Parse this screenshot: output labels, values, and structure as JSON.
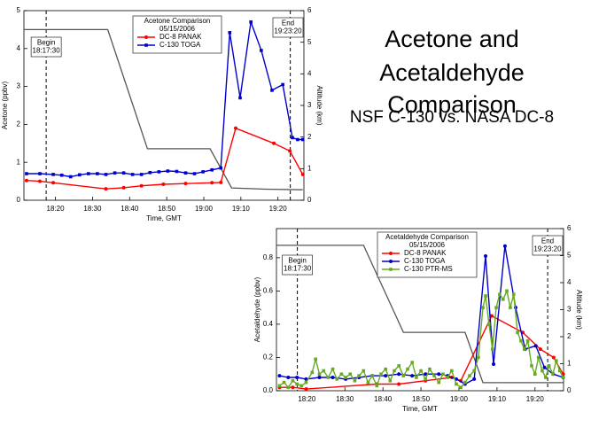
{
  "slide": {
    "title_lines": [
      "Acetone and",
      "Acetaldehyde",
      "Comparison"
    ],
    "subtitle": "NSF C-130 vs. NASA DC-8"
  },
  "chart_data": [
    {
      "type": "line",
      "title": "Acetone Comparison",
      "subtitle": "05/15/2006",
      "xlabel": "Time, GMT",
      "ylabel": "Acetone  (ppbv)",
      "y2label": "Altitude  (km)",
      "xlim": [
        1091.5,
        1167
      ],
      "xticks": [
        {
          "value": 1100,
          "label": "18:20"
        },
        {
          "value": 1110,
          "label": "18:30"
        },
        {
          "value": 1120,
          "label": "18:40"
        },
        {
          "value": 1130,
          "label": "18:50"
        },
        {
          "value": 1140,
          "label": "19:00"
        },
        {
          "value": 1150,
          "label": "19:10"
        },
        {
          "value": 1160,
          "label": "19:20"
        }
      ],
      "ylim": [
        0,
        5
      ],
      "yticks": [
        0,
        1,
        2,
        3,
        4,
        5
      ],
      "y2lim": [
        0,
        6
      ],
      "y2ticks": [
        0,
        1,
        2,
        3,
        4,
        5,
        6
      ],
      "annotations": [
        {
          "x": 1097.5,
          "lines": [
            "Begin",
            "18:17:30"
          ]
        },
        {
          "x": 1163.33,
          "lines": [
            "End",
            "19:23:20"
          ]
        }
      ],
      "series": [
        {
          "color": "#555555",
          "axis": "y2",
          "marker": "none",
          "x": [
            1091.5,
            1114.1,
            1124.8,
            1141.7,
            1147.5,
            1156.5,
            1166.7
          ],
          "values": [
            5.4,
            5.4,
            1.63,
            1.63,
            0.39,
            0.35,
            0.33
          ]
        },
        {
          "name": "DC-8 PANAK",
          "color": "#ff0000",
          "marker": "circle",
          "x": [
            1092.2,
            1095.8,
            1099.4,
            1113.6,
            1118.4,
            1123.2,
            1129.1,
            1135.1,
            1142.2,
            1144.6,
            1148.6,
            1158.9,
            1163.2,
            1166.7
          ],
          "values": [
            0.52,
            0.5,
            0.46,
            0.3,
            0.33,
            0.38,
            0.42,
            0.44,
            0.46,
            0.47,
            1.9,
            1.5,
            1.3,
            0.68
          ]
        },
        {
          "name": "C-130 TOGA",
          "color": "#0000cc",
          "marker": "square",
          "x": [
            1092.2,
            1095.8,
            1099.4,
            1101.7,
            1104.1,
            1106.5,
            1108.9,
            1111.3,
            1113.6,
            1116.0,
            1118.4,
            1120.8,
            1123.2,
            1125.5,
            1127.9,
            1130.3,
            1132.7,
            1135.1,
            1137.5,
            1139.8,
            1142.2,
            1144.6,
            1147.0,
            1149.8,
            1152.7,
            1155.5,
            1158.4,
            1161.3,
            1163.9,
            1165.3,
            1166.7
          ],
          "values": [
            0.7,
            0.7,
            0.68,
            0.66,
            0.62,
            0.67,
            0.7,
            0.7,
            0.68,
            0.72,
            0.72,
            0.68,
            0.68,
            0.73,
            0.75,
            0.77,
            0.76,
            0.72,
            0.7,
            0.75,
            0.8,
            0.85,
            4.42,
            2.7,
            4.7,
            3.95,
            2.9,
            3.05,
            1.65,
            1.6,
            1.6
          ]
        }
      ]
    },
    {
      "type": "line",
      "title": "Acetaldehyde Comparison",
      "subtitle": "05/15/2006",
      "xlabel": "Time, GMT",
      "ylabel": "Acetaldehyde  (ppbv)",
      "y2label": "Altitude  (km)",
      "xlim": [
        1092,
        1167.5
      ],
      "xticks": [
        {
          "value": 1100,
          "label": "18:20"
        },
        {
          "value": 1110,
          "label": "18:30"
        },
        {
          "value": 1120,
          "label": "18:40"
        },
        {
          "value": 1130,
          "label": "18:50"
        },
        {
          "value": 1140,
          "label": "19:00"
        },
        {
          "value": 1150,
          "label": "19:10"
        },
        {
          "value": 1160,
          "label": "19:20"
        }
      ],
      "ylim": [
        0,
        0.975
      ],
      "yticks": [
        {
          "value": 0,
          "label": "0.0"
        },
        0.2,
        0.4,
        0.6,
        0.8
      ],
      "y2lim": [
        0,
        6
      ],
      "y2ticks": [
        0,
        1,
        2,
        3,
        4,
        5,
        6
      ],
      "annotations": [
        {
          "x": 1097.5,
          "lines": [
            "Begin",
            "18:17:30"
          ]
        },
        {
          "x": 1163.33,
          "lines": [
            "End",
            "19:23:20"
          ]
        }
      ],
      "series": [
        {
          "color": "#555555",
          "axis": "y2",
          "marker": "none",
          "x": [
            1092.1,
            1114.9,
            1125.4,
            1141.6,
            1146.3,
            1167.4
          ],
          "values": [
            5.38,
            5.38,
            2.16,
            2.16,
            0.3,
            0.3
          ]
        },
        {
          "name": "DC-8 PANAK",
          "color": "#ff0000",
          "marker": "circle",
          "x": [
            1092.8,
            1096.3,
            1099.8,
            1118.4,
            1124.2,
            1131.2,
            1138.1,
            1140.5,
            1148.6,
            1156.8,
            1161.4,
            1164.9,
            1167.4
          ],
          "values": [
            0.02,
            0.02,
            0.01,
            0.04,
            0.04,
            0.06,
            0.08,
            0.06,
            0.45,
            0.35,
            0.25,
            0.2,
            0.1
          ]
        },
        {
          "name": "C-130 TOGA",
          "color": "#0000cc",
          "marker": "circle",
          "x": [
            1092.8,
            1095.1,
            1097.4,
            1099.8,
            1103.3,
            1106.8,
            1110.2,
            1113.7,
            1117.2,
            1120.7,
            1124.2,
            1127.7,
            1131.2,
            1134.7,
            1137.0,
            1139.3,
            1141.6,
            1144.0,
            1147.0,
            1149.1,
            1152.1,
            1154.9,
            1157.4,
            1160.2,
            1162.5,
            1164.8,
            1167.4
          ],
          "values": [
            0.09,
            0.08,
            0.08,
            0.07,
            0.08,
            0.08,
            0.07,
            0.08,
            0.09,
            0.09,
            0.1,
            0.09,
            0.1,
            0.1,
            0.09,
            0.07,
            0.04,
            0.07,
            0.81,
            0.16,
            0.87,
            0.5,
            0.25,
            0.27,
            0.14,
            0.1,
            0.08
          ]
        },
        {
          "name": "C-130 PTR-MS",
          "color": "#66aa22",
          "marker": "square",
          "x": [
            1092.8,
            1094.0,
            1095.1,
            1096.3,
            1097.4,
            1098.6,
            1099.8,
            1101.4,
            1102.3,
            1103.3,
            1104.4,
            1105.6,
            1106.8,
            1107.9,
            1109.1,
            1110.2,
            1111.4,
            1112.6,
            1113.7,
            1114.9,
            1116.1,
            1117.2,
            1118.4,
            1119.5,
            1120.7,
            1121.9,
            1123.0,
            1124.2,
            1125.4,
            1126.5,
            1127.7,
            1128.8,
            1130.0,
            1131.2,
            1132.3,
            1133.5,
            1134.7,
            1135.8,
            1137.0,
            1138.1,
            1139.3,
            1140.5,
            1141.6,
            1142.8,
            1144.0,
            1145.1,
            1146.3,
            1147.0,
            1147.9,
            1148.8,
            1149.8,
            1150.7,
            1151.6,
            1152.6,
            1153.5,
            1154.4,
            1155.4,
            1156.3,
            1157.2,
            1158.1,
            1159.1,
            1160.0,
            1160.9,
            1161.9,
            1162.8,
            1163.7,
            1164.7,
            1165.6,
            1166.5,
            1167.4
          ],
          "values": [
            0.03,
            0.05,
            0.02,
            0.06,
            0.04,
            0.03,
            0.05,
            0.11,
            0.19,
            0.1,
            0.12,
            0.08,
            0.13,
            0.07,
            0.1,
            0.08,
            0.1,
            0.06,
            0.09,
            0.12,
            0.05,
            0.09,
            0.03,
            0.1,
            0.13,
            0.06,
            0.12,
            0.15,
            0.09,
            0.13,
            0.17,
            0.08,
            0.12,
            0.07,
            0.13,
            0.09,
            0.05,
            0.1,
            0.08,
            0.12,
            0.04,
            0.02,
            0.05,
            0.09,
            0.12,
            0.2,
            0.5,
            0.57,
            0.4,
            0.25,
            0.5,
            0.58,
            0.55,
            0.6,
            0.5,
            0.58,
            0.35,
            0.3,
            0.25,
            0.3,
            0.15,
            0.1,
            0.2,
            0.12,
            0.08,
            0.15,
            0.1,
            0.18,
            0.12,
            0.08
          ]
        }
      ]
    }
  ]
}
